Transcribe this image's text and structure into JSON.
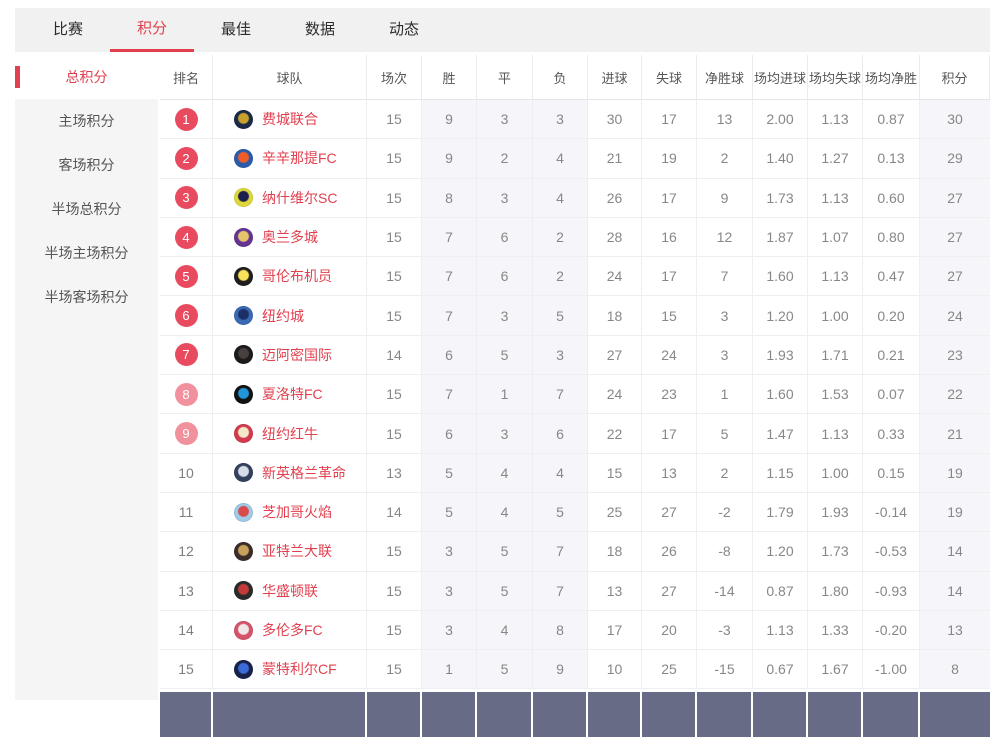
{
  "nav": {
    "tabs": [
      {
        "label": "比赛",
        "active": false
      },
      {
        "label": "积分",
        "active": true
      },
      {
        "label": "最佳",
        "active": false
      },
      {
        "label": "数据",
        "active": false
      },
      {
        "label": "动态",
        "active": false
      }
    ]
  },
  "sidebar": {
    "items": [
      {
        "label": "总积分",
        "active": true
      },
      {
        "label": "主场积分",
        "active": false
      },
      {
        "label": "客场积分",
        "active": false
      },
      {
        "label": "半场总积分",
        "active": false
      },
      {
        "label": "半场主场积分",
        "active": false
      },
      {
        "label": "半场客场积分",
        "active": false
      }
    ]
  },
  "colors": {
    "accent": "#e2404f",
    "badge_top": "#e84b5f",
    "badge_mid": "#f0919d",
    "column_tint": "#f6f6fa",
    "next_section_bar": "#686b86"
  },
  "table": {
    "columns": [
      "排名",
      "球队",
      "场次",
      "胜",
      "平",
      "负",
      "进球",
      "失球",
      "净胜球",
      "场均进球",
      "场均失球",
      "场均净胜",
      "积分"
    ],
    "rows": [
      {
        "rank": "1",
        "badge_style": "red",
        "team": "费城联合",
        "logo": {
          "outer": "#1b2a47",
          "inner": "#c9a22e"
        },
        "played": "15",
        "win": "9",
        "draw": "3",
        "loss": "3",
        "gf": "30",
        "ga": "17",
        "gd": "13",
        "avg_gf": "2.00",
        "avg_ga": "1.13",
        "avg_gd": "0.87",
        "pts": "30"
      },
      {
        "rank": "2",
        "badge_style": "red",
        "team": "辛辛那提FC",
        "logo": {
          "outer": "#2a5caa",
          "inner": "#f05b2a"
        },
        "played": "15",
        "win": "9",
        "draw": "2",
        "loss": "4",
        "gf": "21",
        "ga": "19",
        "gd": "2",
        "avg_gf": "1.40",
        "avg_ga": "1.27",
        "avg_gd": "0.13",
        "pts": "29"
      },
      {
        "rank": "3",
        "badge_style": "red",
        "team": "纳什维尔SC",
        "logo": {
          "outer": "#ded73b",
          "inner": "#1d1f4e"
        },
        "played": "15",
        "win": "8",
        "draw": "3",
        "loss": "4",
        "gf": "26",
        "ga": "17",
        "gd": "9",
        "avg_gf": "1.73",
        "avg_ga": "1.13",
        "avg_gd": "0.60",
        "pts": "27"
      },
      {
        "rank": "4",
        "badge_style": "red",
        "team": "奥兰多城",
        "logo": {
          "outer": "#633492",
          "inner": "#e6c56a"
        },
        "played": "15",
        "win": "7",
        "draw": "6",
        "loss": "2",
        "gf": "28",
        "ga": "16",
        "gd": "12",
        "avg_gf": "1.87",
        "avg_ga": "1.07",
        "avg_gd": "0.80",
        "pts": "27"
      },
      {
        "rank": "5",
        "badge_style": "red",
        "team": "哥伦布机员",
        "logo": {
          "outer": "#1f1f1f",
          "inner": "#f7e05a"
        },
        "played": "15",
        "win": "7",
        "draw": "6",
        "loss": "2",
        "gf": "24",
        "ga": "17",
        "gd": "7",
        "avg_gf": "1.60",
        "avg_ga": "1.13",
        "avg_gd": "0.47",
        "pts": "27"
      },
      {
        "rank": "6",
        "badge_style": "red",
        "team": "纽约城",
        "logo": {
          "outer": "#3b6ab5",
          "inner": "#1c2f66"
        },
        "played": "15",
        "win": "7",
        "draw": "3",
        "loss": "5",
        "gf": "18",
        "ga": "15",
        "gd": "3",
        "avg_gf": "1.20",
        "avg_ga": "1.00",
        "avg_gd": "0.20",
        "pts": "24"
      },
      {
        "rank": "7",
        "badge_style": "red",
        "team": "迈阿密国际",
        "logo": {
          "outer": "#1d1a1b",
          "inner": "#47403f"
        },
        "played": "14",
        "win": "6",
        "draw": "5",
        "loss": "3",
        "gf": "27",
        "ga": "24",
        "gd": "3",
        "avg_gf": "1.93",
        "avg_ga": "1.71",
        "avg_gd": "0.21",
        "pts": "23"
      },
      {
        "rank": "8",
        "badge_style": "pink",
        "team": "夏洛特FC",
        "logo": {
          "outer": "#121212",
          "inner": "#2196d8"
        },
        "played": "15",
        "win": "7",
        "draw": "1",
        "loss": "7",
        "gf": "24",
        "ga": "23",
        "gd": "1",
        "avg_gf": "1.60",
        "avg_ga": "1.53",
        "avg_gd": "0.07",
        "pts": "22"
      },
      {
        "rank": "9",
        "badge_style": "pink",
        "team": "纽约红牛",
        "logo": {
          "outer": "#d23b4d",
          "inner": "#f3e9c8"
        },
        "played": "15",
        "win": "6",
        "draw": "3",
        "loss": "6",
        "gf": "22",
        "ga": "17",
        "gd": "5",
        "avg_gf": "1.47",
        "avg_ga": "1.13",
        "avg_gd": "0.33",
        "pts": "21"
      },
      {
        "rank": "10",
        "badge_style": "none",
        "team": "新英格兰革命",
        "logo": {
          "outer": "#33415f",
          "inner": "#d8dce6"
        },
        "played": "13",
        "win": "5",
        "draw": "4",
        "loss": "4",
        "gf": "15",
        "ga": "13",
        "gd": "2",
        "avg_gf": "1.15",
        "avg_ga": "1.00",
        "avg_gd": "0.15",
        "pts": "19"
      },
      {
        "rank": "11",
        "badge_style": "none",
        "team": "芝加哥火焰",
        "logo": {
          "outer": "#9fcbe8",
          "inner": "#d94a4a"
        },
        "played": "14",
        "win": "5",
        "draw": "4",
        "loss": "5",
        "gf": "25",
        "ga": "27",
        "gd": "-2",
        "avg_gf": "1.79",
        "avg_ga": "1.93",
        "avg_gd": "-0.14",
        "pts": "19"
      },
      {
        "rank": "12",
        "badge_style": "none",
        "team": "亚特兰大联",
        "logo": {
          "outer": "#3a2d2a",
          "inner": "#c8a15c"
        },
        "played": "15",
        "win": "3",
        "draw": "5",
        "loss": "7",
        "gf": "18",
        "ga": "26",
        "gd": "-8",
        "avg_gf": "1.20",
        "avg_ga": "1.73",
        "avg_gd": "-0.53",
        "pts": "14"
      },
      {
        "rank": "13",
        "badge_style": "none",
        "team": "华盛顿联",
        "logo": {
          "outer": "#2b2b2b",
          "inner": "#c33a3a"
        },
        "played": "15",
        "win": "3",
        "draw": "5",
        "loss": "7",
        "gf": "13",
        "ga": "27",
        "gd": "-14",
        "avg_gf": "0.87",
        "avg_ga": "1.80",
        "avg_gd": "-0.93",
        "pts": "14"
      },
      {
        "rank": "14",
        "badge_style": "none",
        "team": "多伦多FC",
        "logo": {
          "outer": "#d5546a",
          "inner": "#f0e8e8"
        },
        "played": "15",
        "win": "3",
        "draw": "4",
        "loss": "8",
        "gf": "17",
        "ga": "20",
        "gd": "-3",
        "avg_gf": "1.13",
        "avg_ga": "1.33",
        "avg_gd": "-0.20",
        "pts": "13"
      },
      {
        "rank": "15",
        "badge_style": "none",
        "team": "蒙特利尔CF",
        "logo": {
          "outer": "#16224a",
          "inner": "#3a6bd8"
        },
        "played": "15",
        "win": "1",
        "draw": "5",
        "loss": "9",
        "gf": "10",
        "ga": "25",
        "gd": "-15",
        "avg_gf": "0.67",
        "avg_ga": "1.67",
        "avg_gd": "-1.00",
        "pts": "8"
      }
    ]
  }
}
